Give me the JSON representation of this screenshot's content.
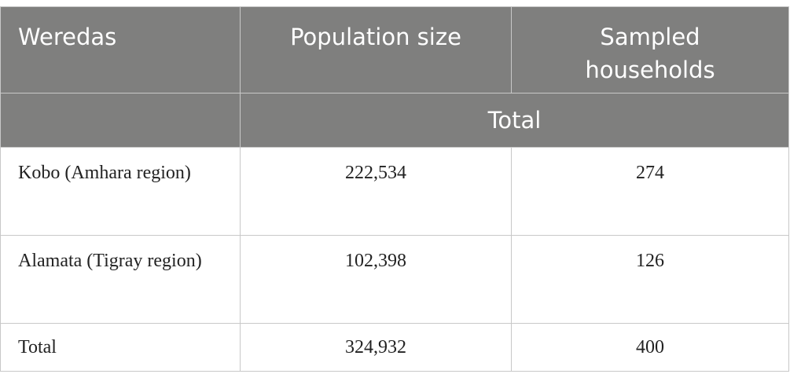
{
  "table": {
    "header": [
      "Weredas",
      "Population size",
      "Sampled households"
    ],
    "subheader": "Total",
    "rows": [
      [
        "Kobo (Amhara region)",
        "222,534",
        "274"
      ],
      [
        "Alamata (Tigray region)",
        "102,398",
        "126"
      ],
      [
        "Total",
        "324,932",
        "400"
      ]
    ]
  }
}
